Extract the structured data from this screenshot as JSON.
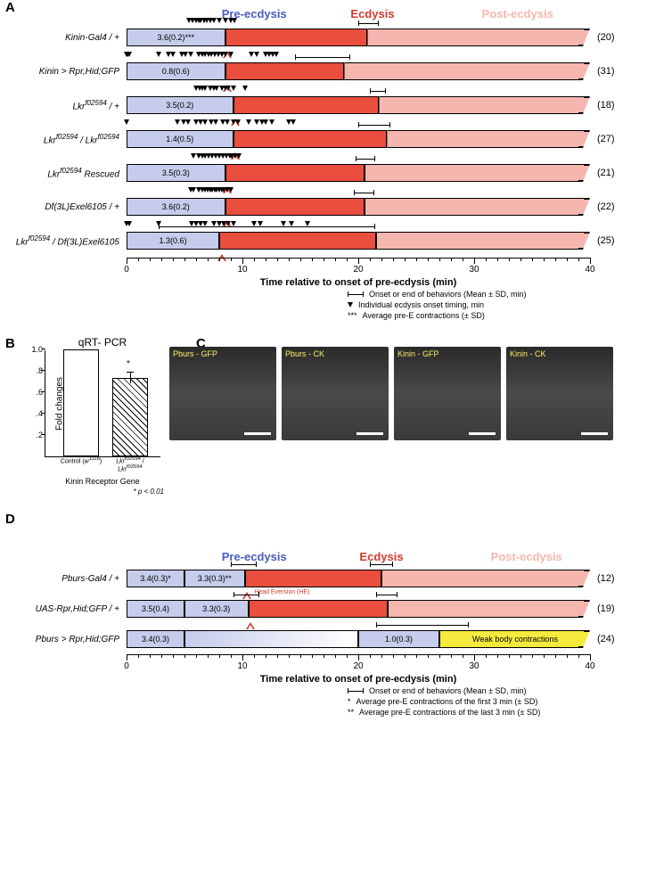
{
  "colors": {
    "pre": "#c6cceb",
    "ecd": "#e94e3f",
    "post": "#f6b6b0",
    "yellow": "#f5eb3e",
    "gradient_from": "#c6cceb",
    "gradient_to": "#ffffff"
  },
  "phase_labels": {
    "pre": "Pre-ecdysis",
    "ecd": "Ecdysis",
    "post": "Post-ecdysis",
    "pre_color": "#4a5cc2",
    "ecd_color": "#d43a2f",
    "post_color": "#f6b6b0"
  },
  "panelA": {
    "axis_title": "Time relative to onset of pre-ecdysis (min)",
    "xlim": [
      0,
      40
    ],
    "ticks": [
      0,
      1,
      2,
      3,
      4,
      5,
      6,
      7,
      8,
      9,
      10,
      11,
      12,
      13,
      14,
      15,
      16,
      17,
      18,
      19,
      20,
      21,
      22,
      23,
      24,
      25,
      26,
      27,
      28,
      29,
      30,
      31,
      32,
      33,
      34,
      35,
      36,
      37,
      38,
      39,
      40
    ],
    "major_tick_labels": [
      0,
      10,
      20,
      30,
      40
    ],
    "rows": [
      {
        "label": "Kinin-Gal4 / +",
        "n": "(20)",
        "contr": "3.6(0.2)***",
        "breaks": [
          0,
          8.5,
          20.8,
          40
        ],
        "markers": [
          5.4,
          5.7,
          6.0,
          6.2,
          6.4,
          6.7,
          6.9,
          7.2,
          7.5,
          8.0,
          8.5,
          9.0,
          9.3
        ],
        "hat": 8.7,
        "err": {
          "a": 20.0,
          "b": 21.8
        }
      },
      {
        "label": "Kinin > Rpr,Hid;GFP",
        "n": "(31)",
        "contr": "0.8(0.6)",
        "breaks": [
          0,
          8.5,
          18.8,
          40
        ],
        "markers": [
          0.0,
          0.1,
          0.2,
          2.8,
          3.6,
          4.0,
          4.8,
          5.1,
          5.5,
          6.2,
          6.5,
          6.8,
          7.1,
          7.3,
          7.6,
          7.9,
          8.2,
          8.5,
          9.0,
          10.8,
          11.2,
          12.0,
          12.3,
          12.6,
          12.9
        ],
        "hat": 8.7,
        "err": {
          "a": 14.5,
          "b": 19.3
        }
      },
      {
        "label": "Lkr<sup>f02594</sup> / +",
        "n": "(18)",
        "contr": "3.5(0.2)",
        "breaks": [
          0,
          9.2,
          21.8,
          40
        ],
        "markers": [
          6.0,
          6.3,
          6.5,
          6.8,
          7.2,
          7.5,
          7.8,
          8.2,
          8.5,
          8.8,
          9.2,
          10.2
        ],
        "hat": 9.4,
        "err": {
          "a": 21.0,
          "b": 22.4
        }
      },
      {
        "label": "Lkr<sup>f02594</sup> / Lkr<sup>f02594</sup>",
        "n": "(27)",
        "contr": "1.4(0.5)",
        "breaks": [
          0,
          9.2,
          22.5,
          40
        ],
        "markers": [
          0,
          4.4,
          4.9,
          5.3,
          6.0,
          6.4,
          6.8,
          7.3,
          7.7,
          8.3,
          8.7,
          9.2,
          9.6,
          10.5,
          11.2,
          11.7,
          12.0,
          12.5,
          14.0,
          14.4
        ],
        "hat": 9.4,
        "err": {
          "a": 20.0,
          "b": 22.8
        }
      },
      {
        "label": "Lkr<sup>f02594</sup> Rescued",
        "n": "(21)",
        "contr": "3.5(0.3)",
        "breaks": [
          0,
          8.5,
          20.5,
          40
        ],
        "markers": [
          5.8,
          6.2,
          6.5,
          6.8,
          7.1,
          7.4,
          7.7,
          8.0,
          8.3,
          8.6,
          8.9,
          9.1,
          9.4,
          9.7
        ],
        "hat": 8.7,
        "err": {
          "a": 19.8,
          "b": 21.5
        }
      },
      {
        "label": "Df(3L)Exel6105 / +",
        "n": "(22)",
        "contr": "3.6(0.2)",
        "breaks": [
          0,
          8.5,
          20.5,
          40
        ],
        "markers": [
          5.5,
          5.8,
          6.2,
          6.5,
          6.8,
          7.0,
          7.2,
          7.4,
          7.6,
          7.8,
          8.0,
          8.2,
          8.4,
          8.7,
          9.0
        ],
        "hat": 8.7,
        "err": {
          "a": 19.6,
          "b": 21.4
        }
      },
      {
        "label": "Lkr<sup>f02594</sup> / Df(3L)Exel6105",
        "n": "(25)",
        "contr": "1.3(0.6)",
        "breaks": [
          0,
          8.0,
          21.5,
          40
        ],
        "markers": [
          0,
          0.2,
          2.8,
          5.6,
          6.0,
          6.4,
          6.8,
          7.5,
          8.0,
          8.4,
          8.8,
          9.2,
          11.0,
          11.5,
          13.5,
          14.2,
          15.6
        ],
        "hat": 8.2,
        "err": {
          "a": 2.8,
          "b": 21.5
        }
      }
    ],
    "legend": {
      "l1": "Onset or end of behaviors (Mean ± SD, min)",
      "l2": "Individual ecdysis onset timing, min",
      "l3": "Average pre-E contractions (± SD)"
    }
  },
  "panelB": {
    "title": "qRT- PCR",
    "ylabel": "Fold changes",
    "yticks": [
      0.2,
      0.4,
      0.6,
      0.8,
      1.0
    ],
    "bars": [
      {
        "label_html": "Control (<i>w</i><sup>1118</sup>)",
        "value": 1.0,
        "hatched": false
      },
      {
        "label_html": "<i>Lkr</i><sup>f02594</sup> / <i>Lkr</i><sup>f02594</sup>",
        "value": 0.73,
        "err": 0.05,
        "star": "*",
        "hatched": true
      }
    ],
    "xtitle": "Kinin Receptor Gene",
    "pnote": "*   p < 0.01"
  },
  "panelC": {
    "images": [
      "Pburs - GFP",
      "Pburs - CK",
      "Kinin - GFP",
      "Kinin - CK"
    ]
  },
  "panelD": {
    "axis_title": "Time relative to onset of pre-ecdysis (min)",
    "xlim": [
      0,
      40
    ],
    "major_tick_labels": [
      0,
      10,
      20,
      30,
      40
    ],
    "rows": [
      {
        "label": "Pburs-Gal4 / +",
        "n": "(12)",
        "segs": [
          {
            "from": 0,
            "to": 5,
            "color": "pre",
            "text": "3.4(0.3)*"
          },
          {
            "from": 5,
            "to": 10.2,
            "color": "pre",
            "text": "3.3(0.3)**"
          },
          {
            "from": 10.2,
            "to": 22.0,
            "color": "ecd"
          },
          {
            "from": 22.0,
            "to": 40,
            "color": "post",
            "last": true
          }
        ],
        "hat": 10.4,
        "he_text": "Head Eversion (HE)",
        "errs": [
          {
            "a": 9.0,
            "b": 11.2
          },
          {
            "a": 21.0,
            "b": 23.0
          }
        ]
      },
      {
        "label": "UAS-Rpr,Hid;GFP / +",
        "n": "(19)",
        "segs": [
          {
            "from": 0,
            "to": 5,
            "color": "pre",
            "text": "3.5(0.4)"
          },
          {
            "from": 5,
            "to": 10.5,
            "color": "pre",
            "text": "3.3(0.3)"
          },
          {
            "from": 10.5,
            "to": 22.5,
            "color": "ecd"
          },
          {
            "from": 22.5,
            "to": 40,
            "color": "post",
            "last": true
          }
        ],
        "hat": 10.7,
        "errs": [
          {
            "a": 9.2,
            "b": 11.5
          },
          {
            "a": 21.5,
            "b": 23.4
          }
        ]
      },
      {
        "label": "Pburs > Rpr,Hid;GFP",
        "n": "(24)",
        "segs": [
          {
            "from": 0,
            "to": 5,
            "color": "pre",
            "text": "3.4(0.3)"
          },
          {
            "from": 5,
            "to": 20,
            "color": "gradient"
          },
          {
            "from": 20,
            "to": 27,
            "color": "pre",
            "text": "1.0(0.3)"
          },
          {
            "from": 27,
            "to": 40,
            "color": "yellow",
            "text": "Weak body contractions",
            "last": true
          }
        ],
        "errs": [
          {
            "a": 21.5,
            "b": 29.5
          }
        ]
      }
    ],
    "legend": {
      "l1": "Onset or end of behaviors (Mean ± SD, min)",
      "l2": "Average pre-E contractions of the first 3 min (± SD)",
      "l3": "Average pre-E contractions of the last 3 min (± SD)"
    }
  }
}
